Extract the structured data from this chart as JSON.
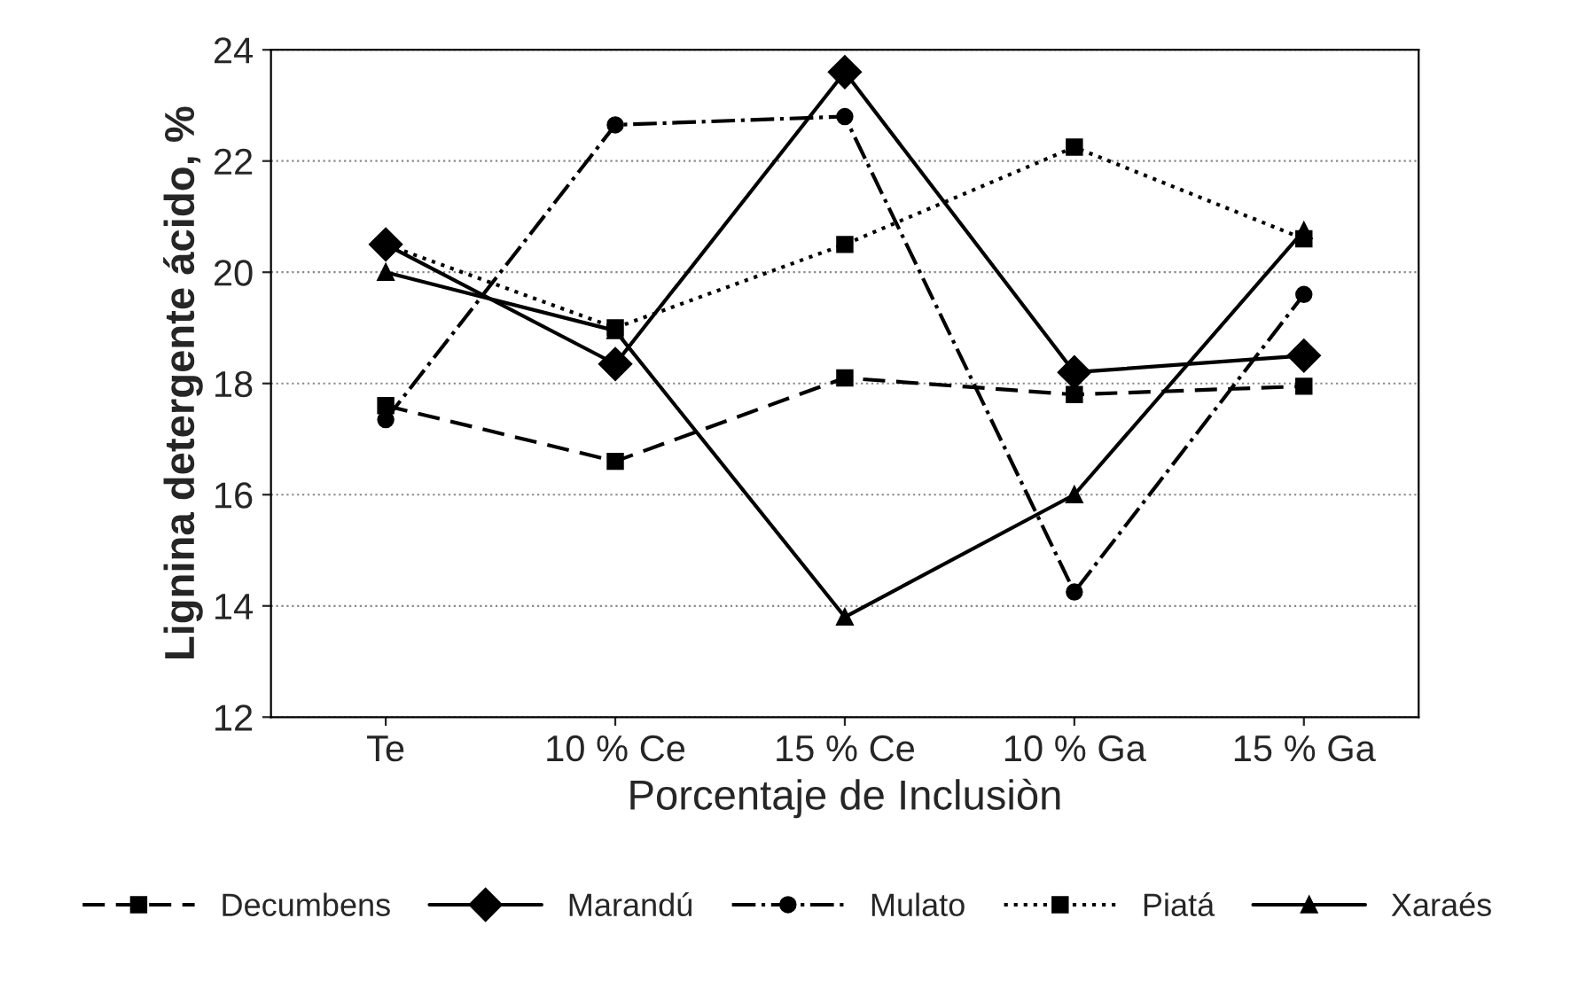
{
  "chart_data": {
    "type": "line",
    "xlabel": "Porcentaje de Inclusiòn",
    "ylabel": "Lignina detergente ácido, %",
    "categories": [
      "Te",
      "10 % Ce",
      "15 % Ce",
      "10 % Ga",
      "15 % Ga"
    ],
    "ylim": [
      12,
      24
    ],
    "yticks": [
      12,
      14,
      16,
      18,
      20,
      22,
      24
    ],
    "grid": "y",
    "legend": "bottom",
    "series": [
      {
        "name": "Decumbens",
        "color": "#000000",
        "marker": "square",
        "line_style": "dashed",
        "values": [
          17.6,
          16.6,
          18.1,
          17.8,
          17.95
        ]
      },
      {
        "name": "Marandú",
        "color": "#000000",
        "marker": "diamond",
        "line_style": "solid",
        "values": [
          20.5,
          18.35,
          23.6,
          18.2,
          18.5
        ]
      },
      {
        "name": "Mulato",
        "color": "#000000",
        "marker": "circle",
        "line_style": "dashdot",
        "values": [
          17.35,
          22.65,
          22.8,
          14.25,
          19.6
        ]
      },
      {
        "name": "Piatá",
        "color": "#000000",
        "marker": "square",
        "line_style": "dotted",
        "values": [
          20.5,
          19.0,
          20.5,
          22.25,
          20.6
        ]
      },
      {
        "name": "Xaraés",
        "color": "#000000",
        "marker": "triangle",
        "line_style": "solid",
        "values": [
          20.0,
          18.95,
          13.8,
          16.0,
          20.75
        ]
      }
    ]
  }
}
